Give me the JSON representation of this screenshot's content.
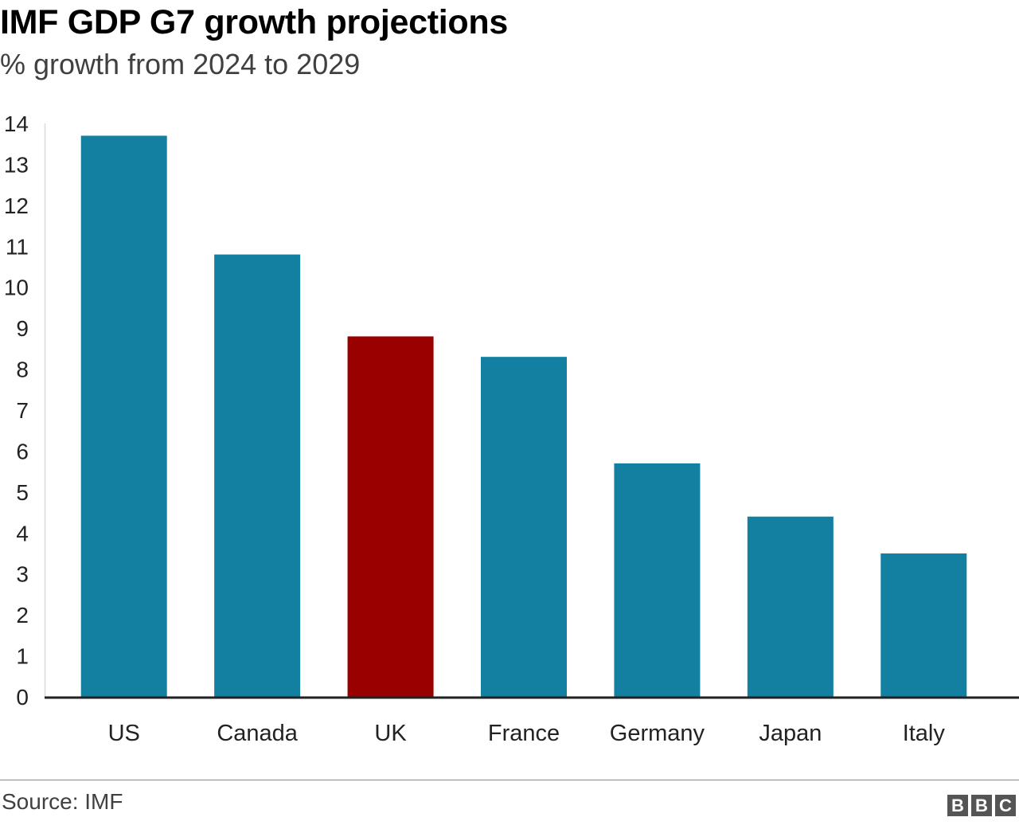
{
  "header": {
    "title": "IMF GDP G7 growth projections",
    "subtitle": "% growth from 2024 to 2029"
  },
  "chart_data": {
    "type": "bar",
    "title": "IMF GDP G7 growth projections",
    "subtitle": "% growth from 2024 to 2029",
    "xlabel": "",
    "ylabel": "",
    "categories": [
      "US",
      "Canada",
      "UK",
      "France",
      "Germany",
      "Japan",
      "Italy"
    ],
    "values": [
      13.7,
      10.8,
      8.8,
      8.3,
      5.7,
      4.4,
      3.5
    ],
    "ylim": [
      0,
      14
    ],
    "yticks": [
      "0",
      "1",
      "2",
      "3",
      "4",
      "5",
      "6",
      "7",
      "8",
      "9",
      "10",
      "11",
      "12",
      "13",
      "14"
    ],
    "grid": false,
    "colors": {
      "default": "#1380a1",
      "highlight": "#990000"
    },
    "highlight_category": "UK"
  },
  "footer": {
    "source": "Source: IMF",
    "logo": [
      "B",
      "B",
      "C"
    ]
  }
}
